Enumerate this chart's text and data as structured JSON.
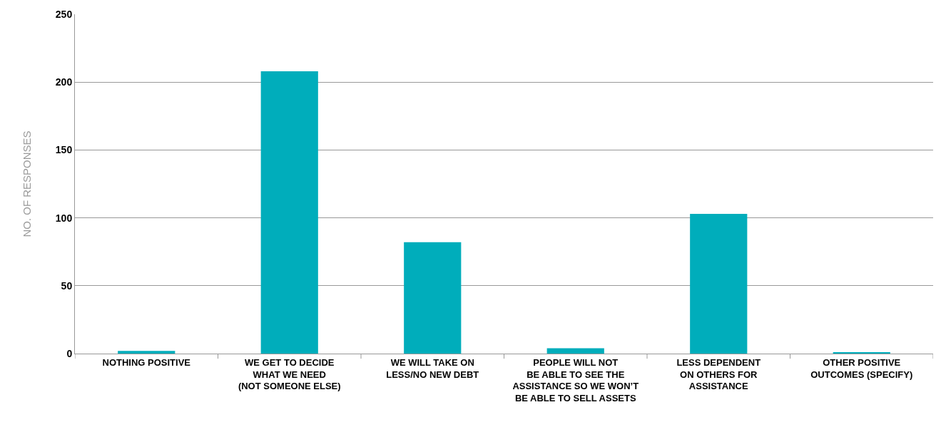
{
  "chart_data": {
    "type": "bar",
    "ylabel": "NO. OF RESPONSES",
    "categories": [
      "NOTHING POSITIVE",
      "WE GET TO DECIDE\nWHAT WE NEED\n(NOT SOMEONE ELSE)",
      "WE WILL TAKE ON\nLESS/NO NEW DEBT",
      "PEOPLE WILL NOT\nBE ABLE TO SEE THE\nASSISTANCE SO WE WON’T\nBE ABLE TO SELL ASSETS",
      "LESS DEPENDENT\nON OTHERS FOR\nASSISTANCE",
      "OTHER POSITIVE\nOUTCOMES (SPECIFY)"
    ],
    "values": [
      2,
      208,
      82,
      4,
      103,
      1
    ],
    "color": "#00adbb",
    "ylim": [
      0,
      250
    ],
    "yticks": [
      0,
      50,
      100,
      150,
      200,
      250
    ],
    "grid": "y",
    "legend": false
  }
}
